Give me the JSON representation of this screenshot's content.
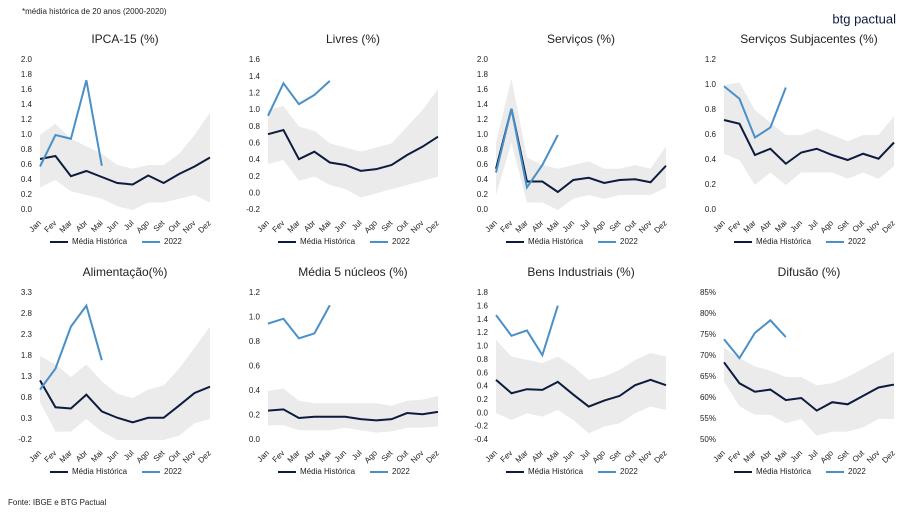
{
  "note": "*média histórica de 20 anos (2000-2020)",
  "logo": "btg pactual",
  "source": "Fonte: IBGE e BTG Pactual",
  "chart_data": [
    {
      "type": "line",
      "title": "IPCA-15 (%)",
      "categories": [
        "Jan",
        "Fev",
        "Mar",
        "Abr",
        "Mai",
        "Jun",
        "Jul",
        "Ago",
        "Set",
        "Out",
        "Nov",
        "Dez"
      ],
      "series": [
        {
          "name": "Média Histórica",
          "color": "#0d1b3e",
          "values": [
            0.68,
            0.72,
            0.45,
            0.52,
            0.44,
            0.36,
            0.34,
            0.46,
            0.36,
            0.48,
            0.58,
            0.7
          ]
        },
        {
          "name": "2022",
          "color": "#4a90c8",
          "values": [
            0.58,
            1.0,
            0.95,
            1.73,
            0.59,
            null,
            null,
            null,
            null,
            null,
            null,
            null
          ]
        }
      ],
      "band_upper": [
        1.0,
        1.15,
        0.95,
        0.85,
        0.75,
        0.6,
        0.55,
        0.6,
        0.6,
        0.75,
        1.0,
        1.3
      ],
      "band_lower": [
        0.3,
        0.4,
        0.25,
        0.2,
        0.15,
        0.05,
        0.0,
        0.1,
        0.1,
        0.15,
        0.2,
        0.1
      ],
      "band_color": "#ebebeb",
      "ylim": [
        0,
        2.0
      ],
      "yticks": [
        {
          "value": 0,
          "label": "0.0"
        },
        0.2,
        0.4,
        0.6,
        0.8,
        {
          "value": 1,
          "label": "1.0"
        },
        1.2,
        1.4,
        1.6,
        1.8,
        {
          "value": 2,
          "label": "2.0"
        }
      ]
    },
    {
      "type": "line",
      "title": "Livres (%)",
      "categories": [
        "Jan",
        "Fev",
        "Mar",
        "Abr",
        "Mai",
        "Jun",
        "Jul",
        "Ago",
        "Set",
        "Out",
        "Nov",
        "Dez"
      ],
      "series": [
        {
          "name": "Média Histórica",
          "color": "#0d1b3e",
          "values": [
            0.71,
            0.76,
            0.41,
            0.5,
            0.37,
            0.34,
            0.27,
            0.29,
            0.34,
            0.46,
            0.56,
            0.68
          ]
        },
        {
          "name": "2022",
          "color": "#4a90c8",
          "values": [
            0.93,
            1.32,
            1.07,
            1.18,
            1.35,
            null,
            null,
            null,
            null,
            null,
            null,
            null
          ]
        }
      ],
      "band_upper": [
        1.0,
        1.05,
        0.8,
        0.75,
        0.6,
        0.55,
        0.5,
        0.55,
        0.6,
        0.8,
        1.0,
        1.25
      ],
      "band_lower": [
        0.35,
        0.4,
        0.15,
        0.2,
        0.1,
        0.05,
        -0.05,
        0.0,
        0.05,
        0.1,
        0.15,
        0.2
      ],
      "band_color": "#ebebeb",
      "ylim": [
        -0.2,
        1.6
      ],
      "yticks": [
        -0.2,
        {
          "value": 0,
          "label": "0.0"
        },
        0.2,
        0.4,
        0.6,
        0.8,
        {
          "value": 1,
          "label": "1.0"
        },
        1.2,
        1.4,
        1.6
      ]
    },
    {
      "type": "line",
      "title": "Serviços (%)",
      "categories": [
        "Jan",
        "Fev",
        "Mar",
        "Abr",
        "Mai",
        "Jun",
        "Jul",
        "Ago",
        "Set",
        "Out",
        "Nov",
        "Dez"
      ],
      "series": [
        {
          "name": "Média Histórica",
          "color": "#0d1b3e",
          "values": [
            0.55,
            1.35,
            0.38,
            0.38,
            0.24,
            0.4,
            0.43,
            0.36,
            0.4,
            0.41,
            0.37,
            0.59
          ]
        },
        {
          "name": "2022",
          "color": "#4a90c8",
          "values": [
            0.5,
            1.35,
            0.3,
            0.6,
            1.0,
            null,
            null,
            null,
            null,
            null,
            null,
            null
          ]
        }
      ],
      "band_upper": [
        0.9,
        1.75,
        0.7,
        0.6,
        0.55,
        0.6,
        0.65,
        0.55,
        0.55,
        0.6,
        0.55,
        0.85
      ],
      "band_lower": [
        0.2,
        0.9,
        0.1,
        0.1,
        0.0,
        0.15,
        0.2,
        0.15,
        0.2,
        0.2,
        0.2,
        0.3
      ],
      "band_color": "#ebebeb",
      "ylim": [
        0,
        2.0
      ],
      "yticks": [
        {
          "value": 0,
          "label": "0.0"
        },
        0.2,
        0.4,
        0.6,
        0.8,
        {
          "value": 1,
          "label": "1.0"
        },
        1.2,
        1.4,
        1.6,
        1.8,
        {
          "value": 2,
          "label": "2.0"
        }
      ]
    },
    {
      "type": "line",
      "title": "Serviços Subjacentes (%)",
      "categories": [
        "Jan",
        "Fev",
        "Mar",
        "Abr",
        "Mai",
        "Jun",
        "Jul",
        "Ago",
        "Set",
        "Out",
        "Nov",
        "Dez"
      ],
      "series": [
        {
          "name": "Média Histórica",
          "color": "#0d1b3e",
          "values": [
            0.72,
            0.69,
            0.44,
            0.49,
            0.37,
            0.46,
            0.49,
            0.44,
            0.4,
            0.45,
            0.41,
            0.54
          ]
        },
        {
          "name": "2022",
          "color": "#4a90c8",
          "values": [
            0.99,
            0.89,
            0.58,
            0.66,
            0.98,
            null,
            null,
            null,
            null,
            null,
            null,
            null
          ]
        }
      ],
      "band_upper": [
        1.0,
        1.02,
        0.8,
        0.7,
        0.6,
        0.6,
        0.65,
        0.6,
        0.55,
        0.6,
        0.6,
        0.75
      ],
      "band_lower": [
        0.45,
        0.4,
        0.2,
        0.3,
        0.2,
        0.3,
        0.3,
        0.3,
        0.25,
        0.3,
        0.25,
        0.35
      ],
      "band_color": "#ebebeb",
      "ylim": [
        0,
        1.2
      ],
      "yticks": [
        {
          "value": 0,
          "label": "0.0"
        },
        0.2,
        0.4,
        0.6,
        0.8,
        {
          "value": 1,
          "label": "1.0"
        },
        1.2
      ]
    },
    {
      "type": "line",
      "title": "Alimentação(%)",
      "categories": [
        "Jan",
        "Fev",
        "Mar",
        "Abr",
        "Mai",
        "Jun",
        "Jul",
        "Ago",
        "Set",
        "Out",
        "Nov",
        "Dez"
      ],
      "series": [
        {
          "name": "Média Histórica",
          "color": "#0d1b3e",
          "values": [
            1.22,
            0.58,
            0.55,
            0.88,
            0.48,
            0.33,
            0.22,
            0.33,
            0.33,
            0.62,
            0.92,
            1.07
          ]
        },
        {
          "name": "2022",
          "color": "#4a90c8",
          "values": [
            1.0,
            1.5,
            2.5,
            3.0,
            1.7,
            null,
            null,
            null,
            null,
            null,
            null,
            null
          ]
        }
      ],
      "band_upper": [
        1.8,
        1.6,
        1.3,
        1.6,
        1.2,
        0.9,
        0.8,
        1.0,
        1.1,
        1.5,
        2.0,
        2.5
      ],
      "band_lower": [
        0.7,
        0.0,
        0.0,
        0.3,
        0.0,
        -0.2,
        -0.2,
        -0.2,
        -0.2,
        -0.1,
        0.2,
        0.3
      ],
      "band_color": "#ebebeb",
      "ylim": [
        -0.2,
        3.3
      ],
      "yticks": [
        -0.2,
        0.3,
        0.8,
        1.3,
        1.8,
        2.3,
        2.8,
        3.3
      ]
    },
    {
      "type": "line",
      "title": "Média 5 núcleos (%)",
      "categories": [
        "Jan",
        "Fev",
        "Mar",
        "Abr",
        "Mai",
        "Jun",
        "Jul",
        "Ago",
        "Set",
        "Out",
        "Nov",
        "Dez"
      ],
      "series": [
        {
          "name": "Média Histórica",
          "color": "#0d1b3e",
          "values": [
            0.24,
            0.25,
            0.18,
            0.19,
            0.19,
            0.19,
            0.17,
            0.16,
            0.17,
            0.22,
            0.21,
            0.23
          ]
        },
        {
          "name": "2022",
          "color": "#4a90c8",
          "values": [
            0.95,
            0.99,
            0.83,
            0.87,
            1.1,
            null,
            null,
            null,
            null,
            null,
            null,
            null
          ]
        }
      ],
      "band_upper": [
        0.4,
        0.42,
        0.32,
        0.3,
        0.3,
        0.3,
        0.3,
        0.3,
        0.28,
        0.32,
        0.33,
        0.36
      ],
      "band_lower": [
        0.12,
        0.12,
        0.08,
        0.08,
        0.08,
        0.1,
        0.08,
        0.06,
        0.07,
        0.1,
        0.1,
        0.11
      ],
      "band_color": "#ebebeb",
      "ylim": [
        0,
        1.2
      ],
      "yticks": [
        {
          "value": 0,
          "label": "0.0"
        },
        0.2,
        0.4,
        0.6,
        0.8,
        {
          "value": 1,
          "label": "1.0"
        },
        1.2
      ]
    },
    {
      "type": "line",
      "title": "Bens Industriais (%)",
      "categories": [
        "Jan",
        "Fev",
        "Mar",
        "Abr",
        "Mai",
        "Jun",
        "Jul",
        "Ago",
        "Set",
        "Out",
        "Nov",
        "Dez"
      ],
      "series": [
        {
          "name": "Média Histórica",
          "color": "#0d1b3e",
          "values": [
            0.5,
            0.3,
            0.36,
            0.35,
            0.47,
            0.28,
            0.1,
            0.19,
            0.26,
            0.42,
            0.5,
            0.42
          ]
        },
        {
          "name": "2022",
          "color": "#4a90c8",
          "values": [
            1.47,
            1.16,
            1.24,
            0.87,
            1.61,
            null,
            null,
            null,
            null,
            null,
            null,
            null
          ]
        }
      ],
      "band_upper": [
        1.1,
        0.85,
        0.8,
        0.75,
        0.85,
        0.7,
        0.5,
        0.55,
        0.65,
        0.8,
        0.9,
        0.85
      ],
      "band_lower": [
        0.0,
        -0.1,
        0.0,
        -0.05,
        0.05,
        -0.1,
        -0.3,
        -0.2,
        -0.15,
        0.0,
        0.1,
        0.05
      ],
      "band_color": "#ebebeb",
      "ylim": [
        -0.4,
        1.8
      ],
      "yticks": [
        -0.4,
        -0.2,
        {
          "value": 0,
          "label": "0.0"
        },
        0.2,
        0.4,
        0.6,
        0.8,
        {
          "value": 1,
          "label": "1.0"
        },
        1.2,
        1.4,
        1.6,
        1.8
      ]
    },
    {
      "type": "line",
      "title": "Difusão (%)",
      "categories": [
        "Jan",
        "Fev",
        "Mar",
        "Abr",
        "Mai",
        "Jun",
        "Jul",
        "Ago",
        "Set",
        "Out",
        "Nov",
        "Dez"
      ],
      "series": [
        {
          "name": "Média Histórica",
          "color": "#0d1b3e",
          "values": [
            68.5,
            63.5,
            61.5,
            62,
            59.5,
            60,
            57,
            59,
            58.5,
            60.5,
            62.5,
            63.2
          ]
        },
        {
          "name": "2022",
          "color": "#4a90c8",
          "values": [
            74,
            69.5,
            75.5,
            78.5,
            74.5,
            null,
            null,
            null,
            null,
            null,
            null,
            null
          ]
        }
      ],
      "band_upper": [
        72,
        69.5,
        67.5,
        66.5,
        65,
        65,
        63,
        63.5,
        65,
        67,
        69,
        71
      ],
      "band_lower": [
        64,
        58,
        56,
        56,
        54,
        55,
        51,
        52,
        52,
        53,
        55,
        55
      ],
      "band_color": "#ebebeb",
      "ylim": [
        50,
        85
      ],
      "yticks": [
        {
          "value": 50,
          "label": "50%"
        },
        {
          "value": 55,
          "label": "55%"
        },
        {
          "value": 60,
          "label": "60%"
        },
        {
          "value": 65,
          "label": "65%"
        },
        {
          "value": 70,
          "label": "70%"
        },
        {
          "value": 75,
          "label": "75%"
        },
        {
          "value": 80,
          "label": "80%"
        },
        {
          "value": 85,
          "label": "85%"
        }
      ]
    }
  ]
}
